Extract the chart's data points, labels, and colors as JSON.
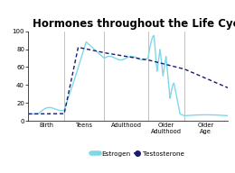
{
  "title": "Hormones throughout the Life Cycle",
  "title_fontsize": 8.5,
  "ylim": [
    0,
    100
  ],
  "ylabel_ticks": [
    0,
    20,
    40,
    60,
    80,
    100
  ],
  "xtick_labels": [
    "Birth",
    "Teens",
    "Adulthood",
    "Older\nAdulthood",
    "Older\nAge"
  ],
  "vline_positions": [
    18,
    38,
    60,
    78
  ],
  "estrogen_color": "#7fd8e8",
  "testosterone_color": "#191970",
  "background_color": "#ffffff",
  "legend_estrogen": "Estrogen",
  "legend_testosterone": "Testosterone",
  "figsize": [
    2.6,
    1.92
  ],
  "dpi": 100
}
